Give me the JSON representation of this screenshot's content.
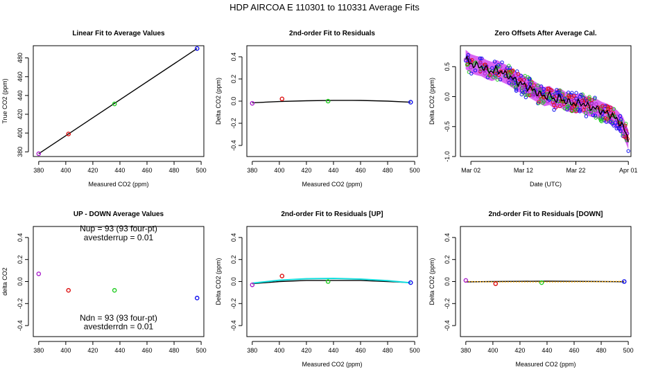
{
  "page": {
    "title": "HDP   AIRCOA E   110301 to 110331   Average Fits"
  },
  "colors": {
    "purple": "#aa22cc",
    "red": "#dd1111",
    "green": "#22cc22",
    "blue": "#1111ee",
    "cyan": "#11dddd",
    "orange": "#ffaa00",
    "magenta": "#cc33ee",
    "black": "#000000"
  },
  "chart_data": [
    {
      "id": "p1",
      "type": "scatter",
      "title": "Linear Fit to Average Values",
      "xlabel": "Measured CO2 (ppm)",
      "ylabel": "True CO2 (ppm)",
      "xlim": [
        376,
        502
      ],
      "ylim": [
        375,
        493
      ],
      "xticks": [
        380,
        400,
        420,
        440,
        460,
        480,
        500
      ],
      "yticks": [
        380,
        400,
        420,
        440,
        460,
        480
      ],
      "points": [
        {
          "x": 380,
          "y": 378,
          "color": "purple"
        },
        {
          "x": 402,
          "y": 399,
          "color": "red"
        },
        {
          "x": 436,
          "y": 431,
          "color": "green"
        },
        {
          "x": 497,
          "y": 490,
          "color": "blue"
        }
      ],
      "lines": [
        {
          "x": [
            380,
            497
          ],
          "y": [
            378,
            490
          ],
          "color": "black"
        }
      ]
    },
    {
      "id": "p2",
      "type": "scatter",
      "title": "2nd-order Fit to Residuals",
      "xlabel": "Measured CO2 (ppm)",
      "ylabel": "Delta CO2 (ppm)",
      "xlim": [
        376,
        502
      ],
      "ylim": [
        -0.5,
        0.5
      ],
      "xticks": [
        380,
        400,
        420,
        440,
        460,
        480,
        500
      ],
      "yticks": [
        -0.4,
        -0.2,
        0.0,
        0.2,
        0.4
      ],
      "points": [
        {
          "x": 380,
          "y": -0.02,
          "color": "purple"
        },
        {
          "x": 402,
          "y": 0.02,
          "color": "red"
        },
        {
          "x": 436,
          "y": 0.0,
          "color": "green"
        },
        {
          "x": 497,
          "y": -0.01,
          "color": "blue"
        }
      ],
      "lines": [
        {
          "x": [
            380,
            400,
            420,
            440,
            460,
            480,
            497
          ],
          "y": [
            -0.015,
            -0.004,
            0.003,
            0.007,
            0.006,
            0.0,
            -0.01
          ],
          "color": "black"
        }
      ]
    },
    {
      "id": "p3",
      "type": "line",
      "title": "Zero Offsets After Average Cal.",
      "xlabel": "Date (UTC)",
      "ylabel": "Delta CO2 (ppm)",
      "xlim": [
        -1,
        31.5
      ],
      "ylim": [
        -1.0,
        0.85
      ],
      "xticks": [
        1,
        11,
        21,
        31
      ],
      "xticklabels": [
        "Mar 02",
        "Mar 12",
        "Mar 22",
        "Apr 01"
      ],
      "yticks": [
        -1.0,
        -0.5,
        0.0,
        0.5
      ],
      "trend": {
        "x": [
          0,
          1,
          2,
          3,
          4,
          5,
          6,
          7,
          8,
          9,
          10,
          11,
          12,
          13,
          14,
          15,
          16,
          17,
          18,
          19,
          20,
          21,
          22,
          23,
          24,
          25,
          26,
          27,
          28,
          29,
          30,
          31
        ],
        "y": [
          0.62,
          0.55,
          0.52,
          0.5,
          0.45,
          0.42,
          0.45,
          0.4,
          0.36,
          0.3,
          0.24,
          0.2,
          0.15,
          0.1,
          0.05,
          0.0,
          0.02,
          -0.05,
          -0.02,
          -0.08,
          -0.1,
          -0.12,
          -0.1,
          -0.15,
          -0.18,
          -0.2,
          -0.25,
          -0.28,
          -0.32,
          -0.4,
          -0.5,
          -0.72
        ]
      },
      "band_halfwidth": 0.16
    },
    {
      "id": "p4",
      "type": "scatter",
      "title": "UP - DOWN Average Values",
      "xlabel": "",
      "ylabel": "delta CO2",
      "xlim": [
        376,
        502
      ],
      "ylim": [
        -0.5,
        0.5
      ],
      "xticks": [
        380,
        400,
        420,
        440,
        460,
        480,
        500
      ],
      "yticks": [
        -0.4,
        -0.2,
        0.0,
        0.2,
        0.4
      ],
      "points": [
        {
          "x": 380,
          "y": 0.07,
          "color": "purple"
        },
        {
          "x": 402,
          "y": -0.08,
          "color": "red"
        },
        {
          "x": 436,
          "y": -0.08,
          "color": "green"
        },
        {
          "x": 497,
          "y": -0.15,
          "color": "blue"
        }
      ],
      "annotations": [
        {
          "text": "Nup = 93 (93 four-pt)",
          "x": 439,
          "y": 0.455
        },
        {
          "text": "avestderrup =  0.01",
          "x": 439,
          "y": 0.375
        },
        {
          "text": "Ndn = 93 (93 four-pt)",
          "x": 439,
          "y": -0.355
        },
        {
          "text": "avestderrdn =  0.01",
          "x": 439,
          "y": -0.435
        }
      ]
    },
    {
      "id": "p5",
      "type": "scatter",
      "title": "2nd-order Fit to Residuals [UP]",
      "xlabel": "Measured CO2 (ppm)",
      "ylabel": "Delta CO2 (ppm)",
      "xlim": [
        376,
        502
      ],
      "ylim": [
        -0.5,
        0.5
      ],
      "xticks": [
        380,
        400,
        420,
        440,
        460,
        480,
        500
      ],
      "yticks": [
        -0.4,
        -0.2,
        0.0,
        0.2,
        0.4
      ],
      "points": [
        {
          "x": 380,
          "y": -0.03,
          "color": "purple"
        },
        {
          "x": 402,
          "y": 0.05,
          "color": "red"
        },
        {
          "x": 436,
          "y": 0.0,
          "color": "green"
        },
        {
          "x": 497,
          "y": -0.01,
          "color": "blue"
        }
      ],
      "lines": [
        {
          "x": [
            380,
            400,
            420,
            440,
            460,
            480,
            497
          ],
          "y": [
            -0.02,
            0.0,
            0.01,
            0.01,
            0.01,
            0.0,
            -0.01
          ],
          "color": "black"
        },
        {
          "x": [
            380,
            400,
            420,
            440,
            460,
            480,
            497
          ],
          "y": [
            -0.015,
            0.012,
            0.025,
            0.028,
            0.022,
            0.008,
            -0.012
          ],
          "color": "cyan"
        }
      ]
    },
    {
      "id": "p6",
      "type": "scatter",
      "title": "2nd-order Fit to Residuals [DOWN]",
      "xlabel": "Measured CO2 (ppm)",
      "ylabel": "Delta CO2 (ppm)",
      "xlim": [
        376,
        502
      ],
      "ylim": [
        -0.5,
        0.5
      ],
      "xticks": [
        380,
        400,
        420,
        440,
        460,
        480,
        500
      ],
      "yticks": [
        -0.4,
        -0.2,
        0.0,
        0.2,
        0.4
      ],
      "points": [
        {
          "x": 380,
          "y": 0.01,
          "color": "purple"
        },
        {
          "x": 402,
          "y": -0.02,
          "color": "red"
        },
        {
          "x": 436,
          "y": -0.01,
          "color": "green"
        },
        {
          "x": 497,
          "y": 0.0,
          "color": "blue"
        }
      ],
      "lines": [
        {
          "x": [
            380,
            400,
            420,
            440,
            460,
            480,
            497
          ],
          "y": [
            -0.003,
            0.0,
            0.002,
            0.003,
            0.002,
            0.0,
            -0.002
          ],
          "color": "black"
        },
        {
          "x": [
            380,
            400,
            420,
            440,
            460,
            480,
            497
          ],
          "y": [
            0.0,
            -0.003,
            -0.004,
            -0.004,
            -0.003,
            -0.001,
            0.002
          ],
          "color": "orange",
          "dashed": true
        }
      ]
    }
  ]
}
